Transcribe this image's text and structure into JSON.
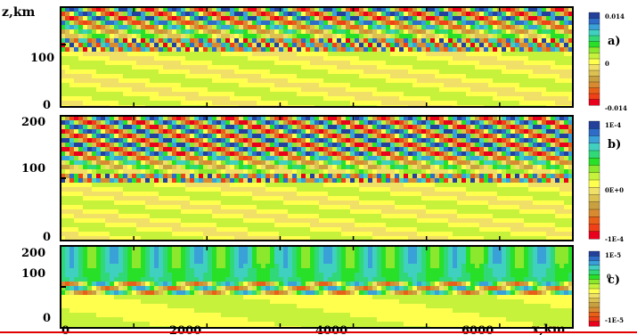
{
  "chart_data": [
    {
      "type": "heatmap",
      "panel_label": "a)",
      "ylabel": "z,km",
      "y_ticks": [
        0,
        100
      ],
      "xlim": [
        0,
        7000
      ],
      "ylim": [
        0,
        160
      ],
      "colorbar": {
        "labels": [
          "0.014",
          "0",
          "-0.014"
        ],
        "min": -0.014,
        "max": 0.014
      },
      "field": {
        "wave_layer_center_km": 100,
        "wave_amplitude": 0.014,
        "upper_crests": 10
      }
    },
    {
      "type": "heatmap",
      "panel_label": "b)",
      "y_ticks": [
        0,
        100,
        200
      ],
      "xlim": [
        0,
        7000
      ],
      "ylim": [
        0,
        200
      ],
      "colorbar": {
        "labels": [
          "1E-4",
          "0E+0",
          "-1E-4"
        ],
        "min": -0.0001,
        "max": 0.0001
      },
      "field": {
        "wave_layer_center_km": 100,
        "wave_amplitude": 0.0001,
        "upper_crests": 10
      }
    },
    {
      "type": "heatmap",
      "panel_label": "c)",
      "xlabel": "x,km",
      "x_ticks": [
        0,
        2000,
        4000,
        6000
      ],
      "y_ticks": [
        0,
        100,
        200
      ],
      "xlim": [
        0,
        7000
      ],
      "ylim": [
        0,
        200
      ],
      "colorbar": {
        "labels": [
          "1E-5",
          "0",
          "-1E-5"
        ],
        "min": -1e-05,
        "max": 1e-05
      },
      "field": {
        "wave_layer_center_km": 100,
        "wave_amplitude": 1e-05,
        "upper_crests": 12
      }
    }
  ],
  "palette": [
    "#e8001c",
    "#f04018",
    "#e86018",
    "#d88a30",
    "#c8a040",
    "#dcc050",
    "#f0e068",
    "#ffff4d",
    "#c6f23c",
    "#8ce82c",
    "#28e028",
    "#30d878",
    "#40d0c0",
    "#3aa0d8",
    "#2e6cc8",
    "#24409a"
  ]
}
